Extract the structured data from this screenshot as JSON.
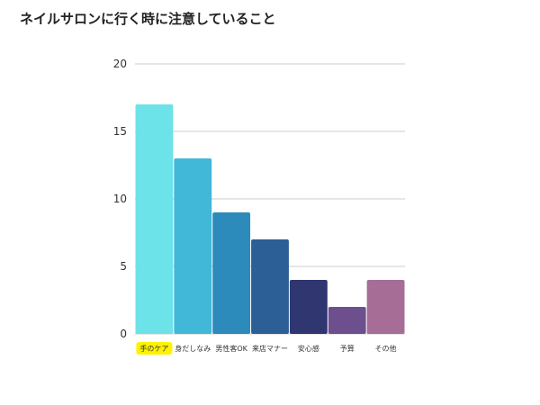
{
  "chart_data": {
    "type": "bar",
    "title": "ネイルサロンに行く時に注意していること",
    "xlabel": "",
    "ylabel": "",
    "categories": [
      "手のケア",
      "身だしなみ",
      "男性客OK",
      "来店マナー",
      "安心感",
      "予算",
      "その他"
    ],
    "values": [
      17,
      13,
      9,
      7,
      4,
      2,
      4
    ],
    "bar_colors": [
      "#6be3e8",
      "#42b8d8",
      "#2c8bbb",
      "#2d5f97",
      "#2f3670",
      "#6d4f8e",
      "#a66d97"
    ],
    "highlighted_category": "手のケア",
    "highlight_color": "#fff200",
    "ylim": [
      0,
      20
    ],
    "yticks": [
      0,
      5,
      10,
      15,
      20
    ],
    "grid": true,
    "legend": "none"
  }
}
